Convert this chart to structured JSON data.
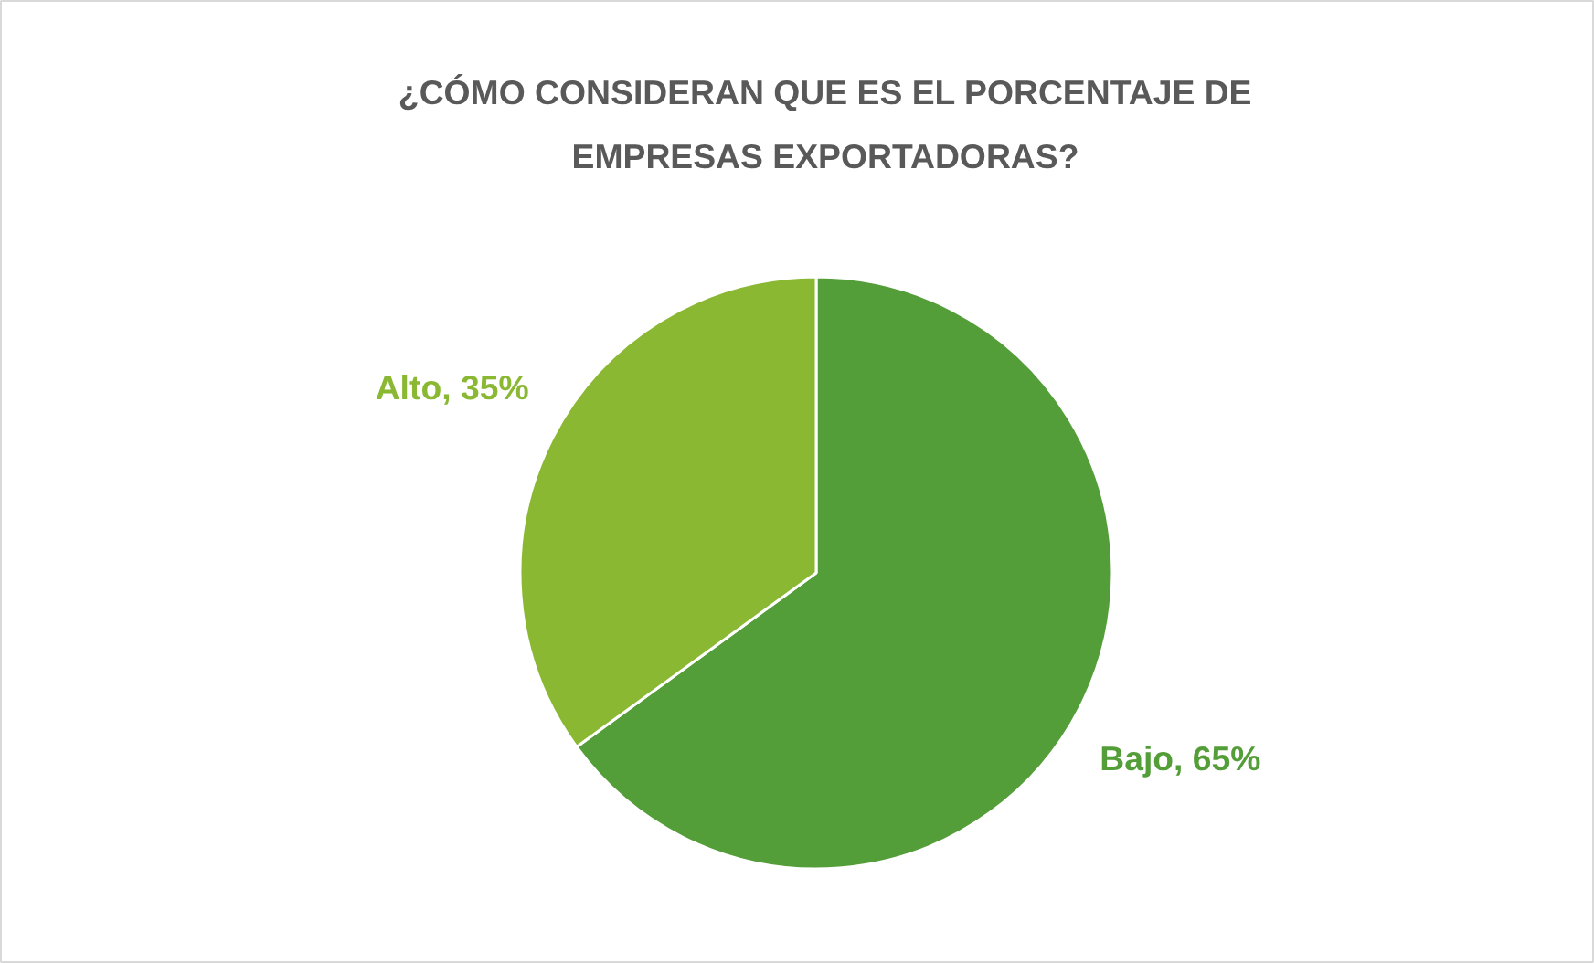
{
  "chart_data": {
    "type": "pie",
    "title": "¿CÓMO CONSIDERAN QUE ES EL PORCENTAJE DE\nEMPRESAS EXPORTADORAS?",
    "categories": [
      "Bajo",
      "Alto"
    ],
    "values": [
      65,
      35
    ],
    "colors": [
      "#549e39",
      "#8ab833"
    ],
    "value_labels": [
      "65%",
      "35%"
    ]
  }
}
